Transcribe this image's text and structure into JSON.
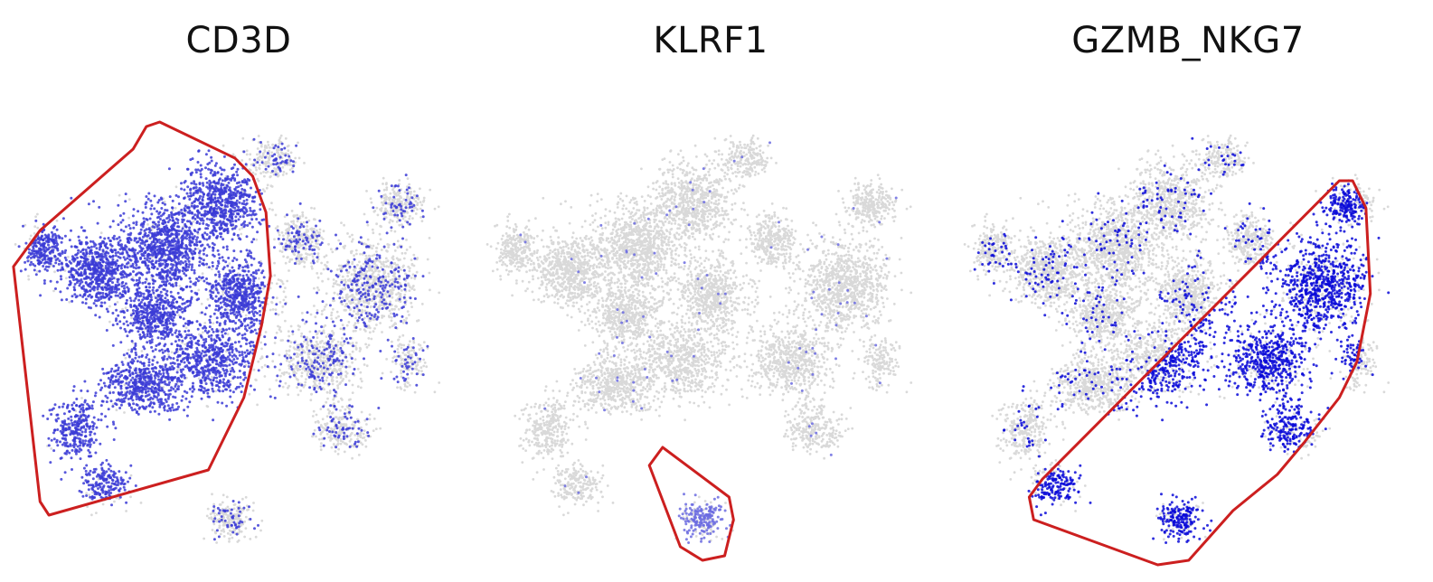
{
  "chart_data": [
    {
      "type": "scatter",
      "title": "CD3D",
      "background_color": "#d9d9d9",
      "highlight_color": "#3b3bd6",
      "outline_color": "#cc1f1f",
      "expressing_fraction": 0.93,
      "gated_region": [
        [
          0.01,
          0.34
        ],
        [
          0.07,
          0.26
        ],
        [
          0.28,
          0.08
        ],
        [
          0.31,
          0.03
        ],
        [
          0.34,
          0.02
        ],
        [
          0.51,
          0.1
        ],
        [
          0.55,
          0.14
        ],
        [
          0.58,
          0.22
        ],
        [
          0.59,
          0.36
        ],
        [
          0.57,
          0.47
        ],
        [
          0.53,
          0.63
        ],
        [
          0.47,
          0.75
        ],
        [
          0.45,
          0.79
        ],
        [
          0.09,
          0.89
        ],
        [
          0.07,
          0.86
        ]
      ]
    },
    {
      "type": "scatter",
      "title": "KLRF1",
      "background_color": "#d9d9d9",
      "highlight_color": "#6b6be0",
      "outline_color": "#cc1f1f",
      "expressing_fraction": 0.05,
      "gated_region": [
        [
          0.38,
          0.78
        ],
        [
          0.41,
          0.74
        ],
        [
          0.56,
          0.85
        ],
        [
          0.57,
          0.9
        ],
        [
          0.55,
          0.98
        ],
        [
          0.5,
          0.99
        ],
        [
          0.45,
          0.96
        ]
      ]
    },
    {
      "type": "scatter",
      "title": "GZMB_NKG7",
      "background_color": "#d9d9d9",
      "highlight_color": "#0a0ad8",
      "outline_color": "#cc1f1f",
      "expressing_fraction": 0.35,
      "gated_region": [
        [
          0.16,
          0.85
        ],
        [
          0.19,
          0.81
        ],
        [
          0.86,
          0.15
        ],
        [
          0.89,
          0.15
        ],
        [
          0.92,
          0.21
        ],
        [
          0.93,
          0.4
        ],
        [
          0.9,
          0.55
        ],
        [
          0.86,
          0.63
        ],
        [
          0.78,
          0.73
        ],
        [
          0.72,
          0.8
        ],
        [
          0.62,
          0.88
        ],
        [
          0.52,
          0.99
        ],
        [
          0.45,
          1.0
        ],
        [
          0.17,
          0.9
        ]
      ]
    }
  ]
}
